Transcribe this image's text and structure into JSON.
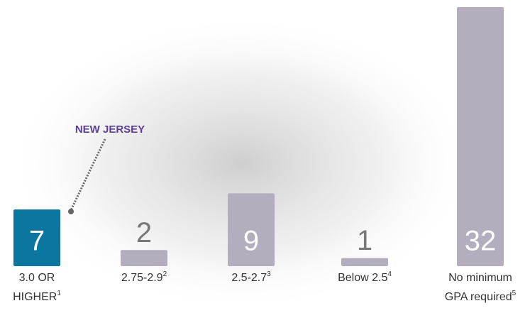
{
  "chart_data": {
    "type": "bar",
    "categories": [
      [
        "3.0 OR",
        "HIGHER"
      ],
      [
        "2.75-2.9"
      ],
      [
        "2.5-2.7"
      ],
      [
        "Below 2.5"
      ],
      [
        "No minimum",
        "GPA required"
      ]
    ],
    "footnotes": [
      "1",
      "2",
      "3",
      "4",
      "5"
    ],
    "values": [
      7,
      2,
      9,
      1,
      32
    ],
    "colors": [
      "#0b77a0",
      "#b4adbd",
      "#b4adbd",
      "#b4adbd",
      "#b4adbd"
    ],
    "ylim": [
      0,
      32
    ],
    "annotation": "NEW JERSEY"
  }
}
